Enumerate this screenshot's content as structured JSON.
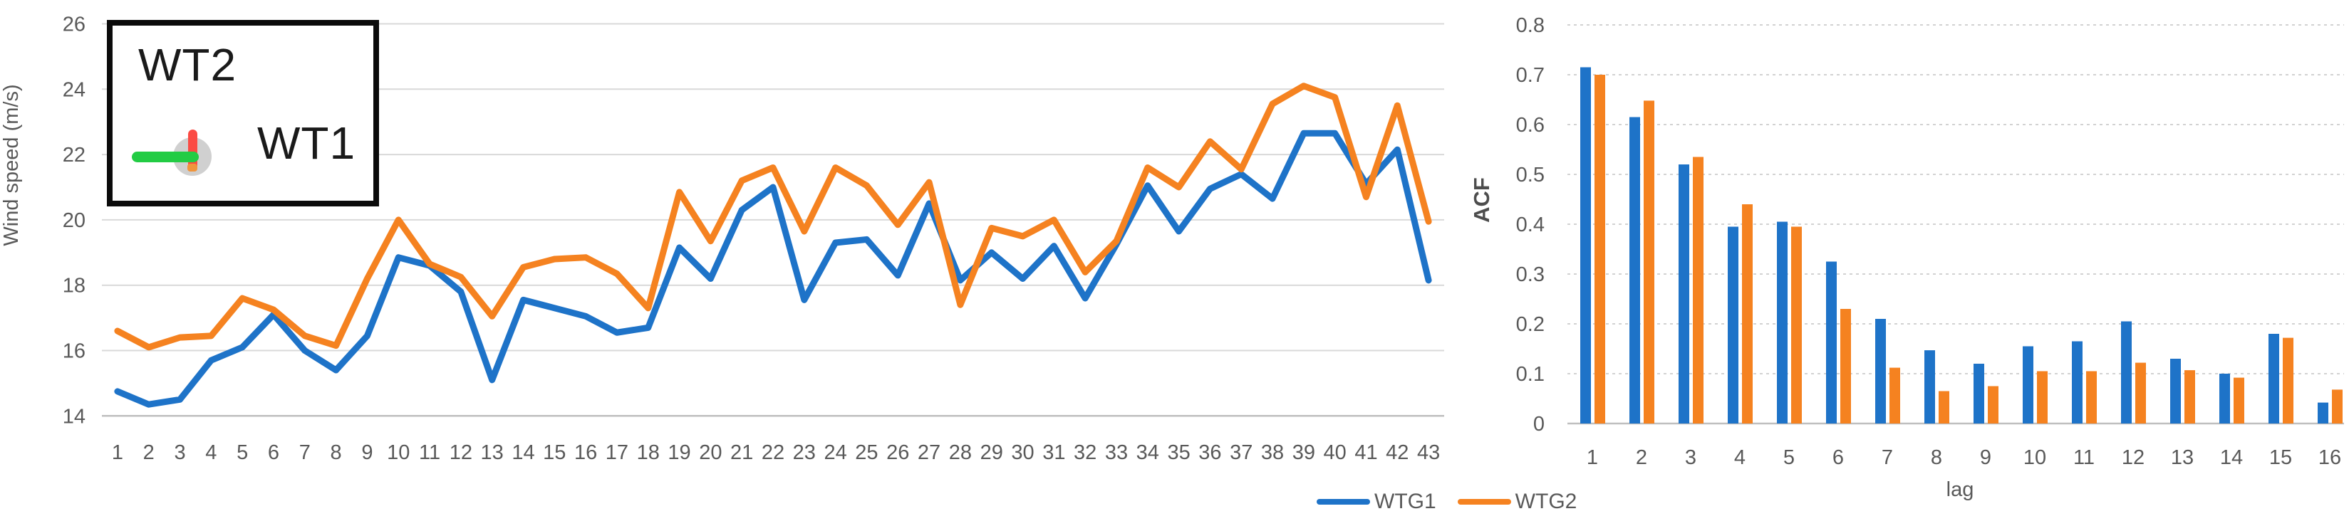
{
  "page": {
    "background": "#ffffff"
  },
  "colors": {
    "wtg1": "#1e73c8",
    "wtg2": "#f58220",
    "grid_solid": "#d9d9d9",
    "grid_dashed": "#d2d2d2",
    "axis_line": "#bfbfbf",
    "tick_text": "#595959",
    "inset_green": "#22cc44",
    "inset_red": "#fb4b44",
    "inset_gray_hub": "rgba(150,150,150,0.45)",
    "inset_orange_nub": "#f0953c"
  },
  "inset_legend": {
    "wt2_label": "WT2",
    "wt1_label": "WT1",
    "glyph": "turbine-direction-diagram"
  },
  "series_legend": {
    "items": [
      {
        "label": "WTG1",
        "color_key": "wtg1"
      },
      {
        "label": "WTG2",
        "color_key": "wtg2"
      }
    ]
  },
  "chart_data": [
    {
      "type": "line",
      "title": "",
      "xlabel": "",
      "ylabel": "Wind speed (m/s)",
      "x": [
        1,
        2,
        3,
        4,
        5,
        6,
        7,
        8,
        9,
        10,
        11,
        12,
        13,
        14,
        15,
        16,
        17,
        18,
        19,
        20,
        21,
        22,
        23,
        24,
        25,
        26,
        27,
        28,
        29,
        30,
        31,
        32,
        33,
        34,
        35,
        36,
        37,
        38,
        39,
        40,
        41,
        42,
        43
      ],
      "ylim": [
        14,
        26
      ],
      "yticks": [
        14,
        16,
        18,
        20,
        22,
        24,
        26
      ],
      "grid": true,
      "legend_position": "bottom",
      "series": [
        {
          "name": "WTG1",
          "color_key": "wtg1",
          "values": [
            14.75,
            14.35,
            14.5,
            15.7,
            16.1,
            17.1,
            16.0,
            15.4,
            16.45,
            18.85,
            18.6,
            17.8,
            15.1,
            17.55,
            17.3,
            17.05,
            16.55,
            16.7,
            19.15,
            18.2,
            20.3,
            21.0,
            17.55,
            19.3,
            19.4,
            18.3,
            20.5,
            18.15,
            19.0,
            18.2,
            19.2,
            17.6,
            19.25,
            21.05,
            19.65,
            20.95,
            21.4,
            20.65,
            22.65,
            22.65,
            21.1,
            22.15,
            18.15
          ]
        },
        {
          "name": "WTG2",
          "color_key": "wtg2",
          "values": [
            16.6,
            16.1,
            16.4,
            16.45,
            17.6,
            17.25,
            16.45,
            16.15,
            18.2,
            20.0,
            18.65,
            18.25,
            17.05,
            18.55,
            18.8,
            18.85,
            18.35,
            17.3,
            20.85,
            19.35,
            21.2,
            21.6,
            19.65,
            21.6,
            21.05,
            19.85,
            21.15,
            17.4,
            19.75,
            19.5,
            20.0,
            18.4,
            19.35,
            21.6,
            21.0,
            22.4,
            21.55,
            23.55,
            24.1,
            23.75,
            20.7,
            23.5,
            19.95
          ]
        }
      ]
    },
    {
      "type": "bar",
      "title": "",
      "xlabel": "lag",
      "ylabel": "ACF",
      "categories": [
        1,
        2,
        3,
        4,
        5,
        6,
        7,
        8,
        9,
        10,
        11,
        12,
        13,
        14,
        15,
        16
      ],
      "ylim": [
        0,
        0.8
      ],
      "yticks": [
        0,
        0.1,
        0.2,
        0.3,
        0.4,
        0.5,
        0.6,
        0.7,
        0.8
      ],
      "ytick_labels": [
        "0",
        "0.1",
        "0.2",
        "0.3",
        "0.4",
        "0.5",
        "0.6",
        "0.7",
        "0.8"
      ],
      "grid": true,
      "series": [
        {
          "name": "WTG1",
          "color_key": "wtg1",
          "values": [
            0.715,
            0.615,
            0.52,
            0.395,
            0.405,
            0.325,
            0.21,
            0.147,
            0.12,
            0.155,
            0.165,
            0.205,
            0.13,
            0.1,
            0.18,
            0.042
          ]
        },
        {
          "name": "WTG2",
          "color_key": "wtg2",
          "values": [
            0.7,
            0.648,
            0.535,
            0.44,
            0.395,
            0.23,
            0.112,
            0.065,
            0.075,
            0.105,
            0.105,
            0.122,
            0.107,
            0.092,
            0.172,
            0.068
          ]
        }
      ]
    }
  ]
}
